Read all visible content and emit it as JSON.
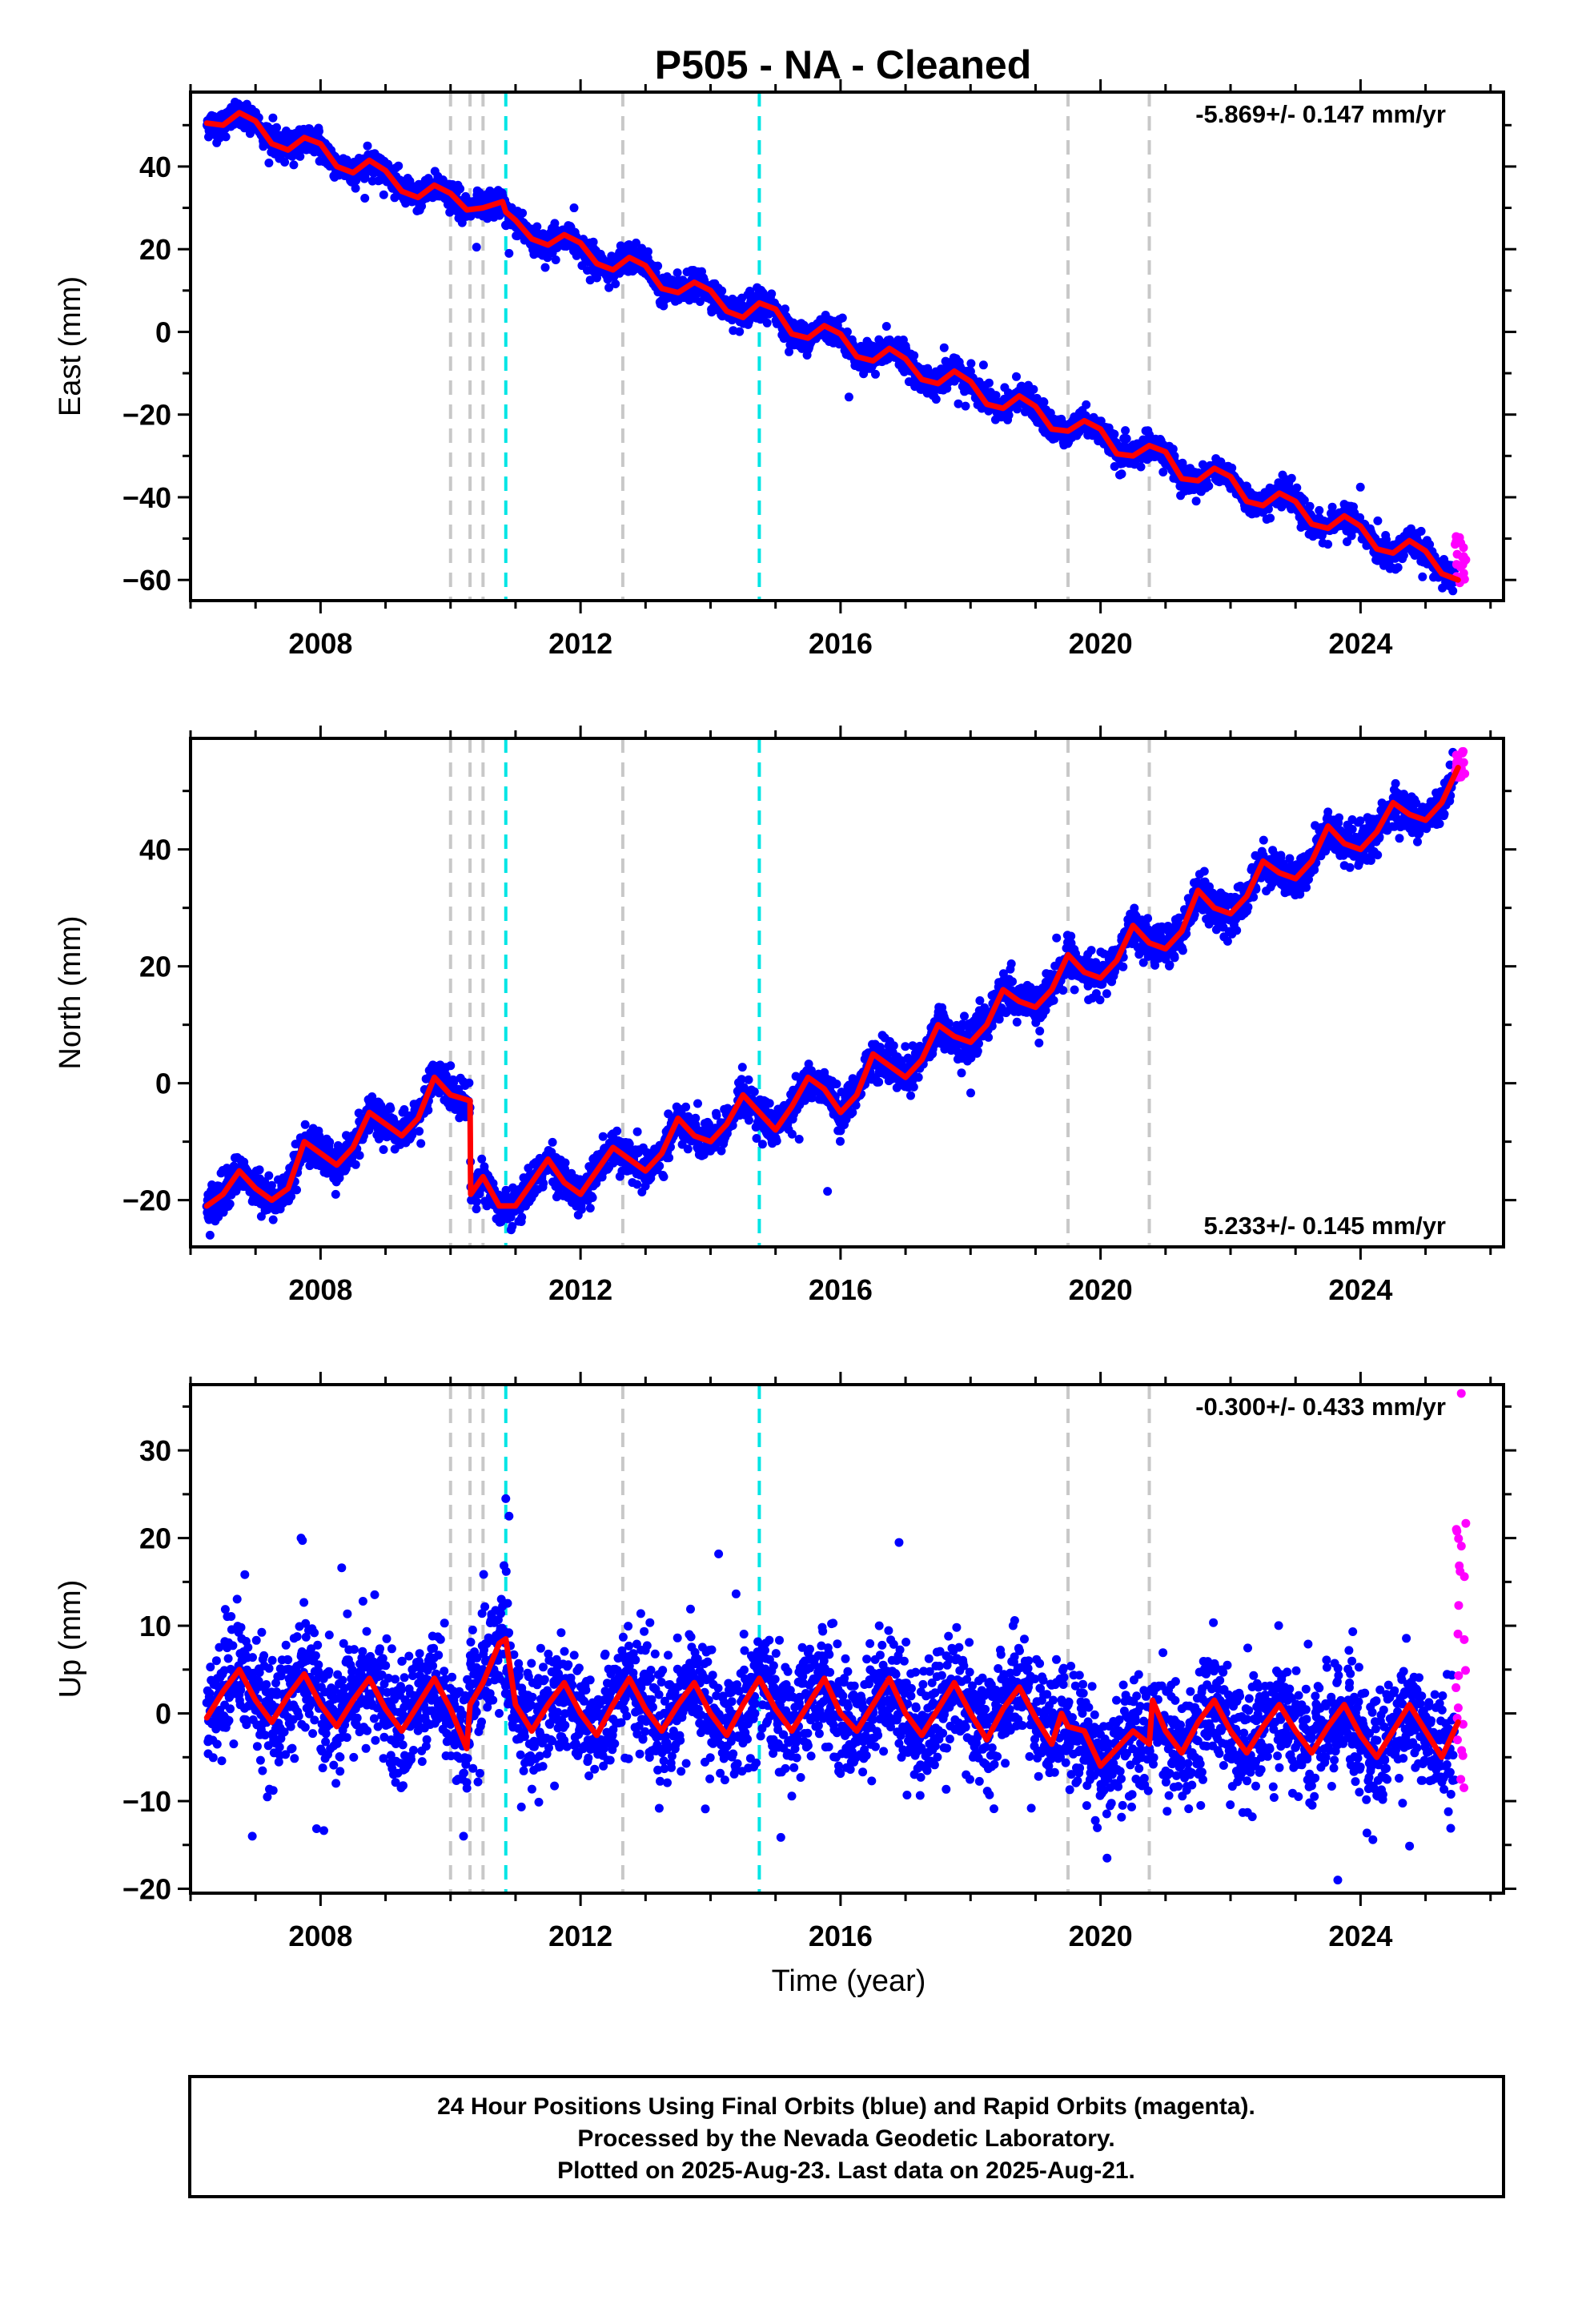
{
  "title": "P505  - NA - Cleaned",
  "xlabel": "Time (year)",
  "footer": {
    "line1": "24 Hour Positions Using Final Orbits (blue) and Rapid Orbits (magenta).",
    "line2": "Processed by the Nevada Geodetic Laboratory.",
    "line3": "Plotted on 2025-Aug-23. Last data on 2025-Aug-21."
  },
  "colors": {
    "final_orbits": "#0000ff",
    "rapid_orbits": "#ff00ff",
    "model": "#ff0000",
    "equipment_change": "#c8c8c8",
    "earthquake": "#00e5e5"
  },
  "chart_data": [
    {
      "type": "scatter",
      "name": "east",
      "ylabel": "East (mm)",
      "xlim": [
        2006.0,
        2026.2
      ],
      "ylim": [
        -65,
        58
      ],
      "x_ticks": [
        2008,
        2012,
        2016,
        2020,
        2024
      ],
      "y_ticks": [
        -60,
        -40,
        -20,
        0,
        20,
        40
      ],
      "rate_label": "-5.869+/- 0.147 mm/yr",
      "rate_position": "top-right",
      "grid": false,
      "model_curve": {
        "x": [
          2006.25,
          2006.5,
          2006.75,
          2007.0,
          2007.25,
          2007.5,
          2007.75,
          2008.0,
          2008.25,
          2008.5,
          2008.75,
          2009.0,
          2009.25,
          2009.5,
          2009.75,
          2010.0,
          2010.25,
          2010.5,
          2010.8,
          2010.85,
          2011.0,
          2011.25,
          2011.5,
          2011.75,
          2012.0,
          2012.25,
          2012.5,
          2012.75,
          2013.0,
          2013.25,
          2013.5,
          2013.75,
          2014.0,
          2014.25,
          2014.5,
          2014.75,
          2015.0,
          2015.25,
          2015.5,
          2015.75,
          2016.0,
          2016.25,
          2016.5,
          2016.75,
          2017.0,
          2017.25,
          2017.5,
          2017.75,
          2018.0,
          2018.25,
          2018.5,
          2018.75,
          2019.0,
          2019.25,
          2019.5,
          2019.75,
          2020.0,
          2020.25,
          2020.5,
          2020.75,
          2021.0,
          2021.25,
          2021.5,
          2021.75,
          2022.0,
          2022.25,
          2022.5,
          2022.75,
          2023.0,
          2023.25,
          2023.5,
          2023.75,
          2024.0,
          2024.25,
          2024.5,
          2024.75,
          2025.0,
          2025.25,
          2025.5
        ],
        "y": [
          50.5,
          50.0,
          53.0,
          51.0,
          45.5,
          44.0,
          47.0,
          45.5,
          40.0,
          38.5,
          41.5,
          39.0,
          34.0,
          32.5,
          35.5,
          33.5,
          29.5,
          30.0,
          31.5,
          29.0,
          27.0,
          22.5,
          21.0,
          23.5,
          21.5,
          16.5,
          15.0,
          18.0,
          16.0,
          10.5,
          9.5,
          12.0,
          10.0,
          5.0,
          3.5,
          7.0,
          5.5,
          -0.5,
          -1.5,
          1.5,
          -0.5,
          -6.0,
          -7.0,
          -4.0,
          -6.5,
          -11.5,
          -12.5,
          -9.5,
          -12.0,
          -17.5,
          -18.5,
          -15.5,
          -18.0,
          -23.5,
          -24.0,
          -21.5,
          -23.5,
          -29.5,
          -30.0,
          -27.5,
          -29.0,
          -35.5,
          -36.0,
          -33.0,
          -35.0,
          -41.0,
          -42.0,
          -39.0,
          -41.0,
          -46.5,
          -47.5,
          -44.5,
          -47.0,
          -52.5,
          -53.5,
          -50.5,
          -53.0,
          -58.5,
          -60.0
        ]
      },
      "trend": {
        "start_x": 2006.25,
        "start_y": 51,
        "rate_mm_per_yr": -5.869
      },
      "seasonal_amplitude": 2.7,
      "scatter_noise": 1.6,
      "offsets": [
        {
          "x": 2010.3,
          "dy": -2
        }
      ],
      "outliers": [
        {
          "x": 2010.4,
          "y": 20.5
        },
        {
          "x": 2010.9,
          "y": 19
        },
        {
          "x": 2011.9,
          "y": 30
        }
      ],
      "rapid": {
        "x_start": 2025.45,
        "x_end": 2025.62,
        "y_min": -62,
        "y_max": -49
      },
      "equipment_changes": [
        2010.0,
        2010.3,
        2010.5,
        2012.65,
        2019.5,
        2020.75
      ],
      "earthquakes": [
        2010.85,
        2014.75
      ]
    },
    {
      "type": "scatter",
      "name": "north",
      "ylabel": "North (mm)",
      "xlim": [
        2006.0,
        2026.2
      ],
      "ylim": [
        -28,
        59
      ],
      "x_ticks": [
        2008,
        2012,
        2016,
        2020,
        2024
      ],
      "y_ticks": [
        -20,
        0,
        20,
        40
      ],
      "rate_label": "5.233+/- 0.145 mm/yr",
      "rate_position": "bottom-right",
      "grid": false,
      "model_curve": {
        "x": [
          2006.25,
          2006.5,
          2006.75,
          2007.0,
          2007.25,
          2007.5,
          2007.75,
          2008.0,
          2008.25,
          2008.5,
          2008.75,
          2009.0,
          2009.25,
          2009.5,
          2009.75,
          2010.0,
          2010.3,
          2010.31,
          2010.5,
          2010.75,
          2011.0,
          2011.25,
          2011.5,
          2011.75,
          2012.0,
          2012.25,
          2012.5,
          2012.75,
          2013.0,
          2013.25,
          2013.5,
          2013.75,
          2014.0,
          2014.25,
          2014.5,
          2014.75,
          2015.0,
          2015.25,
          2015.5,
          2015.75,
          2016.0,
          2016.25,
          2016.5,
          2016.75,
          2017.0,
          2017.25,
          2017.5,
          2017.75,
          2018.0,
          2018.25,
          2018.5,
          2018.75,
          2019.0,
          2019.25,
          2019.5,
          2019.75,
          2020.0,
          2020.25,
          2020.5,
          2020.75,
          2021.0,
          2021.25,
          2021.5,
          2021.75,
          2022.0,
          2022.25,
          2022.5,
          2022.75,
          2023.0,
          2023.25,
          2023.5,
          2023.75,
          2024.0,
          2024.25,
          2024.5,
          2024.75,
          2025.0,
          2025.25,
          2025.5
        ],
        "y": [
          -21,
          -19,
          -15,
          -18,
          -20,
          -18,
          -10,
          -12,
          -14,
          -11,
          -5,
          -7,
          -9,
          -6,
          1,
          -2,
          -3,
          -19,
          -16,
          -21,
          -21,
          -17,
          -13,
          -17,
          -19,
          -15,
          -11,
          -13,
          -15,
          -12,
          -6,
          -9,
          -10,
          -7,
          -2,
          -5,
          -8,
          -4,
          1,
          -1,
          -5,
          -2,
          5,
          3,
          1,
          4,
          10,
          8,
          7,
          10,
          16,
          14,
          13,
          16,
          22,
          19,
          18,
          21,
          27,
          24,
          23,
          26,
          33,
          30,
          29,
          32,
          38,
          36,
          35,
          38,
          44,
          41,
          40,
          43,
          48,
          46,
          45,
          48,
          54
        ]
      },
      "trend": {
        "start_x": 2006.25,
        "start_y": -21,
        "rate_mm_per_yr": 5.233
      },
      "seasonal_amplitude": 3.0,
      "scatter_noise": 1.6,
      "offsets": [
        {
          "x": 2010.3,
          "dy": -16
        }
      ],
      "outliers": [
        {
          "x": 2006.3,
          "y": -26
        },
        {
          "x": 2010.0,
          "y": 3
        },
        {
          "x": 2015.8,
          "y": -18.5
        }
      ],
      "rapid": {
        "x_start": 2025.45,
        "x_end": 2025.62,
        "y_min": 52,
        "y_max": 57
      },
      "equipment_changes": [
        2010.0,
        2010.3,
        2010.5,
        2012.65,
        2019.5,
        2020.75
      ],
      "earthquakes": [
        2010.85,
        2014.75
      ]
    },
    {
      "type": "scatter",
      "name": "up",
      "ylabel": "Up (mm)",
      "xlim": [
        2006.0,
        2026.2
      ],
      "ylim": [
        -20.5,
        37.5
      ],
      "x_ticks": [
        2008,
        2012,
        2016,
        2020,
        2024
      ],
      "y_ticks": [
        -20,
        -10,
        0,
        10,
        20,
        30
      ],
      "rate_label": "-0.300+/- 0.433 mm/yr",
      "rate_position": "top-right",
      "grid": false,
      "model_curve": {
        "x": [
          2006.25,
          2006.5,
          2006.75,
          2007.0,
          2007.25,
          2007.5,
          2007.75,
          2008.0,
          2008.25,
          2008.5,
          2008.75,
          2009.0,
          2009.25,
          2009.5,
          2009.75,
          2010.0,
          2010.25,
          2010.3,
          2010.5,
          2010.75,
          2010.85,
          2011.0,
          2011.25,
          2011.5,
          2011.75,
          2012.0,
          2012.25,
          2012.5,
          2012.75,
          2013.0,
          2013.25,
          2013.5,
          2013.75,
          2014.0,
          2014.25,
          2014.5,
          2014.75,
          2015.0,
          2015.25,
          2015.5,
          2015.75,
          2016.0,
          2016.25,
          2016.5,
          2016.75,
          2017.0,
          2017.25,
          2017.5,
          2017.75,
          2018.0,
          2018.25,
          2018.5,
          2018.75,
          2019.0,
          2019.25,
          2019.4,
          2019.5,
          2019.75,
          2020.0,
          2020.25,
          2020.5,
          2020.75,
          2020.8,
          2021.0,
          2021.25,
          2021.5,
          2021.75,
          2022.0,
          2022.25,
          2022.5,
          2022.75,
          2023.0,
          2023.25,
          2023.5,
          2023.75,
          2024.0,
          2024.25,
          2024.5,
          2024.75,
          2025.0,
          2025.25,
          2025.5
        ],
        "y": [
          -0.5,
          2.5,
          5.0,
          1.5,
          -1.0,
          2.0,
          4.5,
          1.0,
          -1.5,
          1.5,
          4.0,
          0.5,
          -2.0,
          1.0,
          4.0,
          0.5,
          -4.0,
          1.0,
          3.5,
          8.0,
          8.5,
          1.0,
          -2.0,
          1.0,
          3.5,
          0.0,
          -2.5,
          1.0,
          4.0,
          0.5,
          -2.0,
          1.0,
          3.5,
          0.0,
          -2.5,
          1.0,
          4.0,
          0.5,
          -2.0,
          1.0,
          4.0,
          0.0,
          -2.0,
          1.0,
          4.0,
          0.0,
          -2.5,
          0.5,
          3.5,
          0.0,
          -3.0,
          0.5,
          3.0,
          -0.5,
          -3.5,
          0.0,
          -1.5,
          -2.0,
          -6.0,
          -4.0,
          -2.0,
          -3.5,
          1.5,
          -2.0,
          -4.5,
          -1.0,
          1.5,
          -2.0,
          -4.5,
          -1.5,
          1.0,
          -2.0,
          -4.5,
          -1.5,
          1.0,
          -2.5,
          -5.0,
          -2.0,
          1.0,
          -2.0,
          -5.0,
          -1.0
        ]
      },
      "trend": {
        "start_x": 2006.25,
        "start_y": 1.5,
        "rate_mm_per_yr": -0.3
      },
      "seasonal_amplitude": 3.2,
      "scatter_noise": 3.3,
      "offsets": [],
      "outliers": [
        {
          "x": 2010.85,
          "y": 24.5
        },
        {
          "x": 2010.9,
          "y": 22.5
        },
        {
          "x": 2007.7,
          "y": 20
        },
        {
          "x": 2016.9,
          "y": 19.5
        },
        {
          "x": 2010.2,
          "y": -14
        },
        {
          "x": 2020.1,
          "y": -16.5
        },
        {
          "x": 2023.65,
          "y": -19
        },
        {
          "x": 2006.95,
          "y": -14
        }
      ],
      "rapid": {
        "x_start": 2025.45,
        "x_end": 2025.62,
        "y_min": -8.5,
        "y_max": 22
      },
      "rapid_extra": [
        {
          "x": 2025.55,
          "y": 36.5
        }
      ],
      "equipment_changes": [
        2010.0,
        2010.3,
        2010.5,
        2012.65,
        2019.5,
        2020.75
      ],
      "earthquakes": [
        2010.85,
        2014.75
      ]
    }
  ]
}
